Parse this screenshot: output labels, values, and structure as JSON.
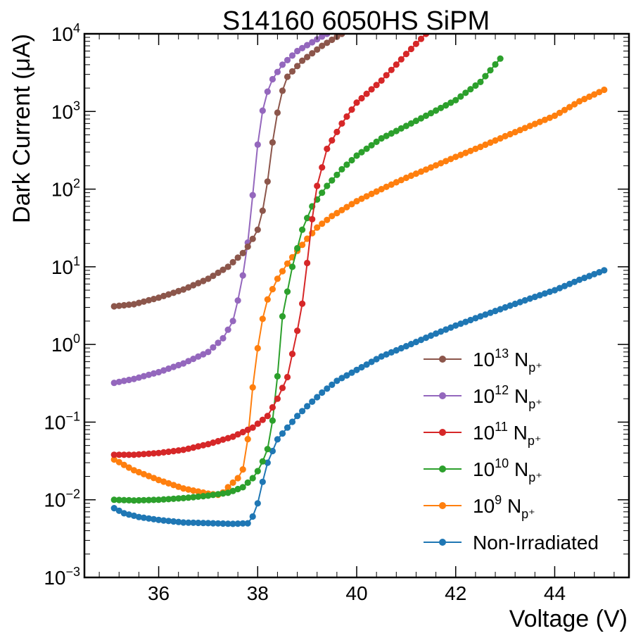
{
  "chart_data": {
    "type": "line",
    "title": "S14160 6050HS SiPM",
    "xlabel": "Voltage (V)",
    "ylabel": "Dark Current (μA)",
    "xlim": [
      34.5,
      45.5
    ],
    "ylim_log10": [
      -3,
      4
    ],
    "yscale": "log",
    "grid": false,
    "legend_position": "lower-right",
    "x_ticks": [
      {
        "value": 36,
        "label": "36"
      },
      {
        "value": 38,
        "label": "38"
      },
      {
        "value": 40,
        "label": "40"
      },
      {
        "value": 42,
        "label": "42"
      },
      {
        "value": 44,
        "label": "44"
      }
    ],
    "y_ticks": [
      {
        "exp": -3,
        "base": "10",
        "sup": "−3"
      },
      {
        "exp": -2,
        "base": "10",
        "sup": "−2"
      },
      {
        "exp": -1,
        "base": "10",
        "sup": "−1"
      },
      {
        "exp": 0,
        "base": "10",
        "sup": "0"
      },
      {
        "exp": 1,
        "base": "10",
        "sup": "1"
      },
      {
        "exp": 2,
        "base": "10",
        "sup": "2"
      },
      {
        "exp": 3,
        "base": "10",
        "sup": "3"
      },
      {
        "exp": 4,
        "base": "10",
        "sup": "4"
      }
    ],
    "series": [
      {
        "name": "Non-Irradiated",
        "legend_base": "",
        "legend_sup": "",
        "legend_tail": "Non-Irradiated",
        "legend_sub": "",
        "color": "#1f77b4",
        "anchors": [
          [
            35.1,
            0.0078
          ],
          [
            35.3,
            0.0067
          ],
          [
            35.6,
            0.006
          ],
          [
            36,
            0.0055
          ],
          [
            36.5,
            0.0051
          ],
          [
            37,
            0.005
          ],
          [
            37.5,
            0.0049
          ],
          [
            37.85,
            0.005
          ],
          [
            38,
            0.009
          ],
          [
            38.1,
            0.017
          ],
          [
            38.2,
            0.03
          ],
          [
            38.4,
            0.06
          ],
          [
            38.6,
            0.085
          ],
          [
            38.8,
            0.12
          ],
          [
            39,
            0.16
          ],
          [
            39.3,
            0.24
          ],
          [
            39.6,
            0.34
          ],
          [
            40,
            0.47
          ],
          [
            40.5,
            0.7
          ],
          [
            41,
            0.95
          ],
          [
            41.5,
            1.3
          ],
          [
            42,
            1.75
          ],
          [
            42.5,
            2.3
          ],
          [
            43,
            3.0
          ],
          [
            43.5,
            3.9
          ],
          [
            44,
            5.0
          ],
          [
            44.5,
            6.8
          ],
          [
            45,
            9.0
          ]
        ]
      },
      {
        "name": "10^9 Np+",
        "legend_base": "10",
        "legend_sup": "9",
        "legend_tail": " N",
        "legend_sub": "p⁺",
        "color": "#ff7f0e",
        "anchors": [
          [
            35.1,
            0.033
          ],
          [
            35.5,
            0.024
          ],
          [
            36,
            0.018
          ],
          [
            36.5,
            0.014
          ],
          [
            37,
            0.012
          ],
          [
            37.25,
            0.0115
          ],
          [
            37.4,
            0.0145
          ],
          [
            37.6,
            0.019
          ],
          [
            37.75,
            0.028
          ],
          [
            37.9,
            0.28
          ],
          [
            38.05,
            1.6
          ],
          [
            38.2,
            3.8
          ],
          [
            38.4,
            7.0
          ],
          [
            38.6,
            11
          ],
          [
            38.8,
            16
          ],
          [
            39,
            23
          ],
          [
            39.2,
            32
          ],
          [
            39.5,
            45
          ],
          [
            40,
            70
          ],
          [
            40.5,
            100
          ],
          [
            41,
            140
          ],
          [
            41.5,
            190
          ],
          [
            42,
            260
          ],
          [
            42.5,
            350
          ],
          [
            43,
            480
          ],
          [
            43.5,
            650
          ],
          [
            44,
            880
          ],
          [
            44.5,
            1350
          ],
          [
            45,
            1900
          ]
        ]
      },
      {
        "name": "10^10 Np+",
        "legend_base": "10",
        "legend_sup": "10",
        "legend_tail": " N",
        "legend_sub": "p⁺",
        "color": "#2ca02c",
        "anchors": [
          [
            35.1,
            0.01
          ],
          [
            35.5,
            0.0098
          ],
          [
            36,
            0.01
          ],
          [
            36.5,
            0.0105
          ],
          [
            37,
            0.0113
          ],
          [
            37.4,
            0.0123
          ],
          [
            37.7,
            0.0145
          ],
          [
            37.9,
            0.019
          ],
          [
            38.05,
            0.026
          ],
          [
            38.2,
            0.045
          ],
          [
            38.35,
            0.16
          ],
          [
            38.5,
            2.3
          ],
          [
            38.7,
            10
          ],
          [
            38.9,
            30
          ],
          [
            39.1,
            60
          ],
          [
            39.4,
            110
          ],
          [
            39.7,
            180
          ],
          [
            40,
            270
          ],
          [
            40.5,
            450
          ],
          [
            41,
            650
          ],
          [
            41.5,
            950
          ],
          [
            42,
            1400
          ],
          [
            42.5,
            2400
          ],
          [
            42.9,
            4800
          ]
        ]
      },
      {
        "name": "10^11 Np+",
        "legend_base": "10",
        "legend_sup": "11",
        "legend_tail": " N",
        "legend_sub": "p⁺",
        "color": "#d62728",
        "anchors": [
          [
            35.1,
            0.038
          ],
          [
            35.5,
            0.038
          ],
          [
            36,
            0.04
          ],
          [
            36.5,
            0.044
          ],
          [
            37,
            0.052
          ],
          [
            37.5,
            0.065
          ],
          [
            37.9,
            0.085
          ],
          [
            38.2,
            0.12
          ],
          [
            38.4,
            0.2
          ],
          [
            38.6,
            0.38
          ],
          [
            38.8,
            1.5
          ],
          [
            38.95,
            5
          ],
          [
            39.05,
            25
          ],
          [
            39.2,
            110
          ],
          [
            39.4,
            330
          ],
          [
            39.7,
            700
          ],
          [
            40,
            1300
          ],
          [
            40.5,
            2500
          ],
          [
            41,
            5500
          ],
          [
            41.4,
            10000
          ]
        ]
      },
      {
        "name": "10^12 Np+",
        "legend_base": "10",
        "legend_sup": "12",
        "legend_tail": " N",
        "legend_sub": "p⁺",
        "color": "#9467bd",
        "anchors": [
          [
            35.1,
            0.32
          ],
          [
            35.5,
            0.36
          ],
          [
            36,
            0.44
          ],
          [
            36.5,
            0.57
          ],
          [
            37,
            0.8
          ],
          [
            37.3,
            1.2
          ],
          [
            37.5,
            2.0
          ],
          [
            37.65,
            5
          ],
          [
            37.75,
            12
          ],
          [
            37.85,
            35
          ],
          [
            37.95,
            200
          ],
          [
            38.05,
            700
          ],
          [
            38.15,
            1500
          ],
          [
            38.3,
            2600
          ],
          [
            38.5,
            4000
          ],
          [
            38.8,
            6000
          ],
          [
            39.2,
            8500
          ],
          [
            39.4,
            10000
          ]
        ]
      },
      {
        "name": "10^13 Np+",
        "legend_base": "10",
        "legend_sup": "13",
        "legend_tail": " N",
        "legend_sub": "p⁺",
        "color": "#8c564b",
        "anchors": [
          [
            35.1,
            3.1
          ],
          [
            35.5,
            3.3
          ],
          [
            36,
            4.0
          ],
          [
            36.5,
            5.1
          ],
          [
            37,
            7.0
          ],
          [
            37.4,
            10
          ],
          [
            37.7,
            15
          ],
          [
            37.85,
            20
          ],
          [
            38,
            30
          ],
          [
            38.15,
            70
          ],
          [
            38.3,
            400
          ],
          [
            38.45,
            1500
          ],
          [
            38.6,
            2800
          ],
          [
            38.9,
            4500
          ],
          [
            39.3,
            7000
          ],
          [
            39.7,
            10000
          ]
        ]
      }
    ]
  }
}
